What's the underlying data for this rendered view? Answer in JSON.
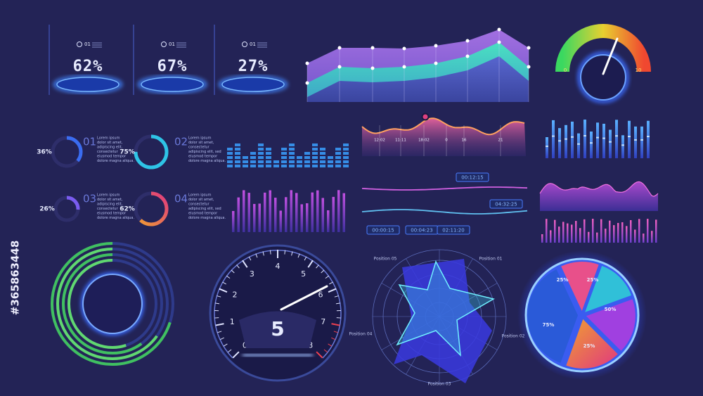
{
  "watermark_id": "#365863448",
  "stat_cards": [
    {
      "index": "01",
      "value": "62%"
    },
    {
      "index": "01",
      "value": "67%"
    },
    {
      "index": "01",
      "value": "27%"
    }
  ],
  "gauge": {
    "min": "0",
    "max": "10"
  },
  "wave_labels": [
    "12:02",
    "11:11",
    "18:02",
    "0",
    "16",
    "21"
  ],
  "ring_items": [
    {
      "number": "01",
      "percent": 36,
      "label": "36%",
      "text": [
        "Lorem ipsum",
        "dolor sit amet,",
        "adipiscing elit,",
        "consectetur",
        "eiusmod tempor",
        "dolore magna aliqua."
      ]
    },
    {
      "number": "02",
      "percent": 75,
      "label": "75%",
      "text": [
        "Lorem ipsum",
        "dolor sit amet,",
        "consectetur",
        "adipiscing elit, sed",
        "eiusmod tempor",
        "dolore magna aliqua."
      ]
    },
    {
      "number": "03",
      "percent": 26,
      "label": "26%",
      "text": [
        "Lorem ipsum",
        "dolor sit amet,",
        "adipiscing elit,",
        "consectetur",
        "eiusmod tempor",
        "dolore magna aliqua."
      ]
    },
    {
      "number": "04",
      "percent": 62,
      "label": "62%",
      "text": [
        "Lorem ipsum",
        "dolor sit amet,",
        "consectetur",
        "adipiscing elit, sed",
        "eiusmod tempor",
        "dolore magna aliqua."
      ]
    }
  ],
  "timers": [
    "00:12:15",
    "04:32:25",
    "00:00:15",
    "00:04:23",
    "02:11:20"
  ],
  "speedometer": {
    "ticks": [
      "0",
      "1",
      "2",
      "3",
      "4",
      "5",
      "6",
      "7",
      "8"
    ],
    "reading": "5"
  },
  "radar": {
    "labels": [
      "Position 01",
      "Position 02",
      "Position 03",
      "Position 04",
      "Position 05"
    ]
  },
  "pie": {
    "labels": [
      "25%",
      "25%",
      "50%",
      "75%",
      "25%"
    ]
  }
}
